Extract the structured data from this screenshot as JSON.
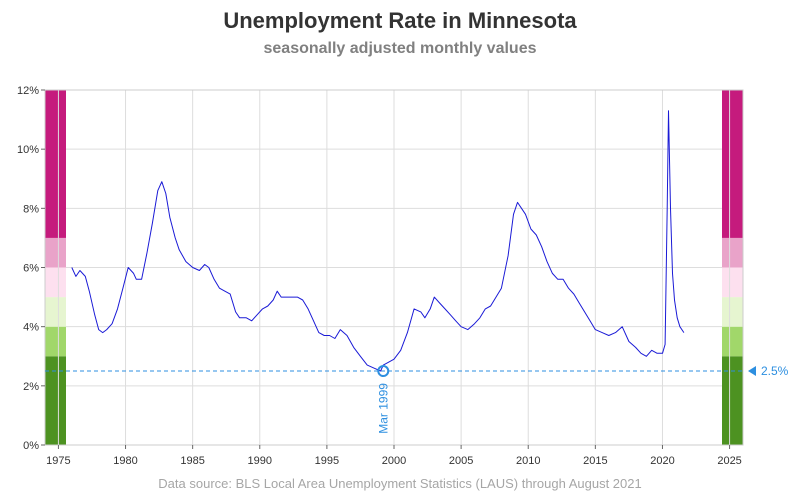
{
  "title": "Unemployment Rate in Minnesota",
  "subtitle": "seasonally adjusted monthly values",
  "footnote": "Data source: BLS Local Area Unemployment Statistics (LAUS) through August 2021",
  "colors": {
    "line": "#1a1ad6",
    "reference": "#2d8fe0",
    "grid": "#dddddd"
  },
  "chart_data": {
    "type": "line",
    "title": "Unemployment Rate in Minnesota",
    "subtitle": "seasonally adjusted monthly values",
    "xlim": [
      1974,
      2026
    ],
    "ylim": [
      0,
      12
    ],
    "x_ticks": [
      1975,
      1980,
      1985,
      1990,
      1995,
      2000,
      2005,
      2010,
      2015,
      2020,
      2025
    ],
    "y_ticks": [
      0,
      2,
      4,
      6,
      8,
      10,
      12
    ],
    "y_tick_labels": [
      "0%",
      "2%",
      "4%",
      "6%",
      "8%",
      "10%",
      "12%"
    ],
    "grid": true,
    "series": [
      {
        "x": [
          1976.0,
          1976.3,
          1976.6,
          1977.0,
          1977.3,
          1977.7,
          1978.0,
          1978.3,
          1978.6,
          1979.0,
          1979.4,
          1979.8,
          1980.2,
          1980.6,
          1980.8,
          1981.2,
          1981.6,
          1982.0,
          1982.4,
          1982.7,
          1983.0,
          1983.3,
          1983.7,
          1984.0,
          1984.5,
          1985.0,
          1985.5,
          1985.9,
          1986.2,
          1986.6,
          1987.0,
          1987.4,
          1987.8,
          1988.2,
          1988.5,
          1989.0,
          1989.4,
          1989.8,
          1990.2,
          1990.6,
          1991.0,
          1991.3,
          1991.6,
          1992.0,
          1992.4,
          1992.8,
          1993.2,
          1993.6,
          1994.0,
          1994.4,
          1994.8,
          1995.2,
          1995.6,
          1996.0,
          1996.5,
          1997.0,
          1997.5,
          1998.0,
          1998.5,
          1999.0,
          1999.2,
          1999.6,
          2000.0,
          2000.5,
          2001.0,
          2001.5,
          2002.0,
          2002.3,
          2002.7,
          2003.0,
          2003.4,
          2003.8,
          2004.2,
          2004.6,
          2005.0,
          2005.5,
          2006.0,
          2006.4,
          2006.8,
          2007.2,
          2007.6,
          2008.0,
          2008.5,
          2008.9,
          2009.2,
          2009.5,
          2009.8,
          2010.2,
          2010.6,
          2011.0,
          2011.4,
          2011.8,
          2012.2,
          2012.6,
          2013.0,
          2013.4,
          2013.8,
          2014.2,
          2014.6,
          2015.0,
          2015.5,
          2016.0,
          2016.5,
          2017.0,
          2017.5,
          2018.0,
          2018.4,
          2018.8,
          2019.2,
          2019.6,
          2020.0,
          2020.2,
          2020.35,
          2020.45,
          2020.6,
          2020.75,
          2020.9,
          2021.1,
          2021.3,
          2021.6
        ],
        "y": [
          6.0,
          5.7,
          5.9,
          5.7,
          5.2,
          4.4,
          3.9,
          3.8,
          3.9,
          4.1,
          4.6,
          5.3,
          6.0,
          5.8,
          5.6,
          5.6,
          6.5,
          7.5,
          8.6,
          8.9,
          8.5,
          7.7,
          7.0,
          6.6,
          6.2,
          6.0,
          5.9,
          6.1,
          6.0,
          5.6,
          5.3,
          5.2,
          5.1,
          4.5,
          4.3,
          4.3,
          4.2,
          4.4,
          4.6,
          4.7,
          4.9,
          5.2,
          5.0,
          5.0,
          5.0,
          5.0,
          4.9,
          4.6,
          4.2,
          3.8,
          3.7,
          3.7,
          3.6,
          3.9,
          3.7,
          3.3,
          3.0,
          2.7,
          2.6,
          2.5,
          2.7,
          2.8,
          2.9,
          3.2,
          3.8,
          4.6,
          4.5,
          4.3,
          4.6,
          5.0,
          4.8,
          4.6,
          4.4,
          4.2,
          4.0,
          3.9,
          4.1,
          4.3,
          4.6,
          4.7,
          5.0,
          5.3,
          6.4,
          7.8,
          8.2,
          8.0,
          7.8,
          7.3,
          7.1,
          6.7,
          6.2,
          5.8,
          5.6,
          5.6,
          5.3,
          5.1,
          4.8,
          4.5,
          4.2,
          3.9,
          3.8,
          3.7,
          3.8,
          4.0,
          3.5,
          3.3,
          3.1,
          3.0,
          3.2,
          3.1,
          3.1,
          3.4,
          8.0,
          11.3,
          8.0,
          5.8,
          4.9,
          4.3,
          4.0,
          3.8
        ]
      }
    ],
    "reference_line": {
      "y": 2.5,
      "label": "2.5%"
    },
    "annotation": {
      "x": 1999.2,
      "y": 2.5,
      "label": "Mar 1999"
    },
    "side_bands": [
      {
        "from": 0,
        "to": 3,
        "color": "#4d9221"
      },
      {
        "from": 3,
        "to": 4,
        "color": "#a1d76a"
      },
      {
        "from": 4,
        "to": 5,
        "color": "#e6f5d0"
      },
      {
        "from": 5,
        "to": 6,
        "color": "#fde0ef"
      },
      {
        "from": 6,
        "to": 7,
        "color": "#e9a3c9"
      },
      {
        "from": 7,
        "to": 12,
        "color": "#c51b7d"
      }
    ]
  }
}
